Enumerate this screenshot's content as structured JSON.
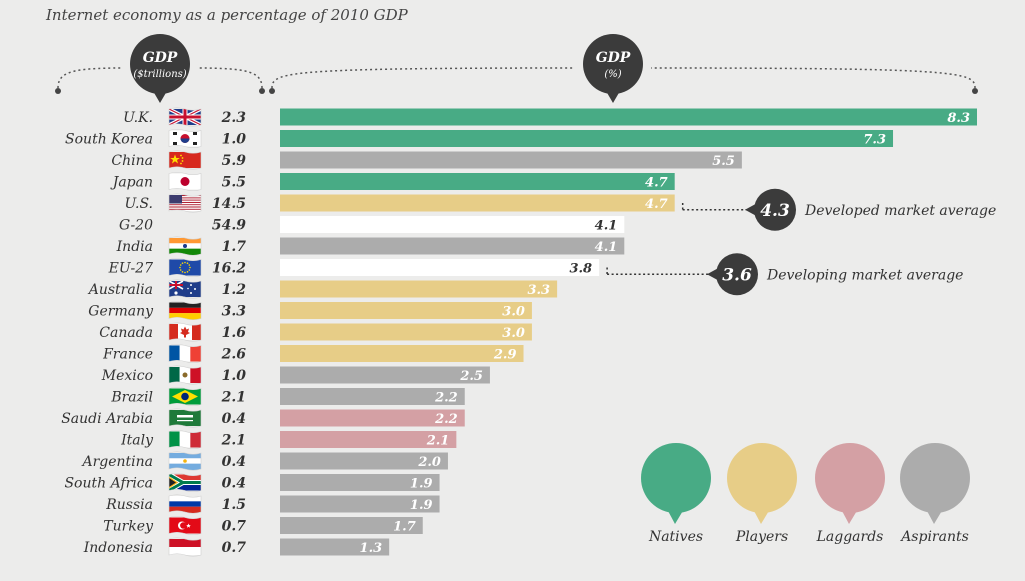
{
  "title": "Internet economy as a percentage of 2010 GDP",
  "colors": {
    "Natives": "#48ab85",
    "Players": "#e7cd87",
    "Laggards": "#d4a0a4",
    "Aspirants": "#acacac",
    "Reference": "#ffffff"
  },
  "chart_data": {
    "type": "bar",
    "title": "Internet economy as a percentage of 2010 GDP",
    "columns": {
      "gdp_trillions": {
        "label": "GDP",
        "sublabel": "($trillions)"
      },
      "gdp_percent": {
        "label": "GDP",
        "sublabel": "(%)"
      }
    },
    "categories": [
      "U.K.",
      "South Korea",
      "China",
      "Japan",
      "U.S.",
      "G-20",
      "India",
      "EU-27",
      "Australia",
      "Germany",
      "Canada",
      "France",
      "Mexico",
      "Brazil",
      "Saudi Arabia",
      "Italy",
      "Argentina",
      "South Africa",
      "Russia",
      "Turkey",
      "Indonesia"
    ],
    "gdp_trillions": [
      "2.3",
      "1.0",
      "5.9",
      "5.5",
      "14.5",
      "54.9",
      "1.7",
      "16.2",
      "1.2",
      "3.3",
      "1.6",
      "2.6",
      "1.0",
      "2.1",
      "0.4",
      "2.1",
      "0.4",
      "0.4",
      "1.5",
      "0.7",
      "0.7"
    ],
    "values": [
      8.3,
      7.3,
      5.5,
      4.7,
      4.7,
      4.1,
      4.1,
      3.8,
      3.3,
      3.0,
      3.0,
      2.9,
      2.5,
      2.2,
      2.2,
      2.1,
      2.0,
      1.9,
      1.9,
      1.7,
      1.3
    ],
    "groups": [
      "Natives",
      "Natives",
      "Aspirants",
      "Natives",
      "Players",
      "Reference",
      "Aspirants",
      "Reference",
      "Players",
      "Players",
      "Players",
      "Players",
      "Aspirants",
      "Aspirants",
      "Laggards",
      "Laggards",
      "Aspirants",
      "Aspirants",
      "Aspirants",
      "Aspirants",
      "Aspirants"
    ],
    "flags": [
      "uk",
      "south-korea",
      "china",
      "japan",
      "us",
      "g20",
      "india",
      "eu",
      "australia",
      "germany",
      "canada",
      "france",
      "mexico",
      "brazil",
      "saudi-arabia",
      "italy",
      "argentina",
      "south-africa",
      "russia",
      "turkey",
      "indonesia"
    ],
    "xlim": [
      0,
      8.3
    ],
    "annotations": [
      {
        "value": "4.3",
        "label": "Developed market average",
        "row": 4
      },
      {
        "value": "3.6",
        "label": "Developing market average",
        "row": 7
      }
    ],
    "legend": {
      "position": "bottom-right",
      "entries": [
        "Natives",
        "Players",
        "Laggards",
        "Aspirants"
      ]
    }
  }
}
